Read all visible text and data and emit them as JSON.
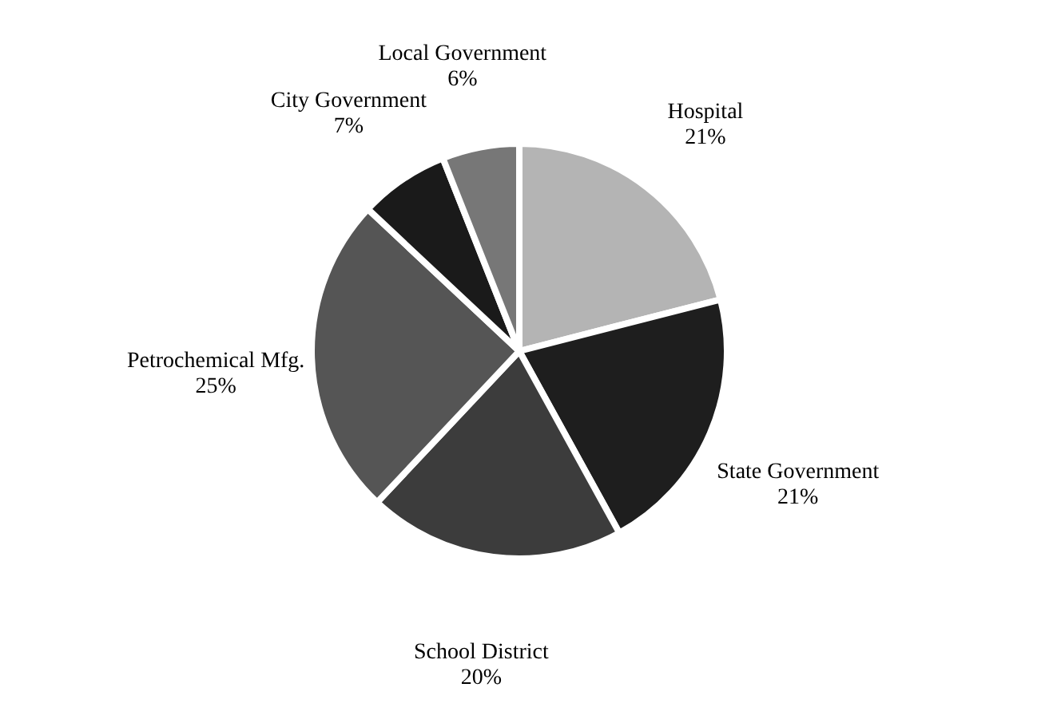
{
  "chart_data": {
    "type": "pie",
    "categories": [
      "Hospital",
      "State Government",
      "School District",
      "Petrochemical Mfg.",
      "City Government",
      "Local Government"
    ],
    "values": [
      21,
      21,
      20,
      25,
      7,
      6
    ],
    "value_labels": [
      "21%",
      "21%",
      "20%",
      "25%",
      "7%",
      "6%"
    ],
    "colors": [
      "#b4b4b4",
      "#1e1e1e",
      "#3c3c3c",
      "#555555",
      "#1a1a1a",
      "#777777"
    ],
    "legend": false
  }
}
